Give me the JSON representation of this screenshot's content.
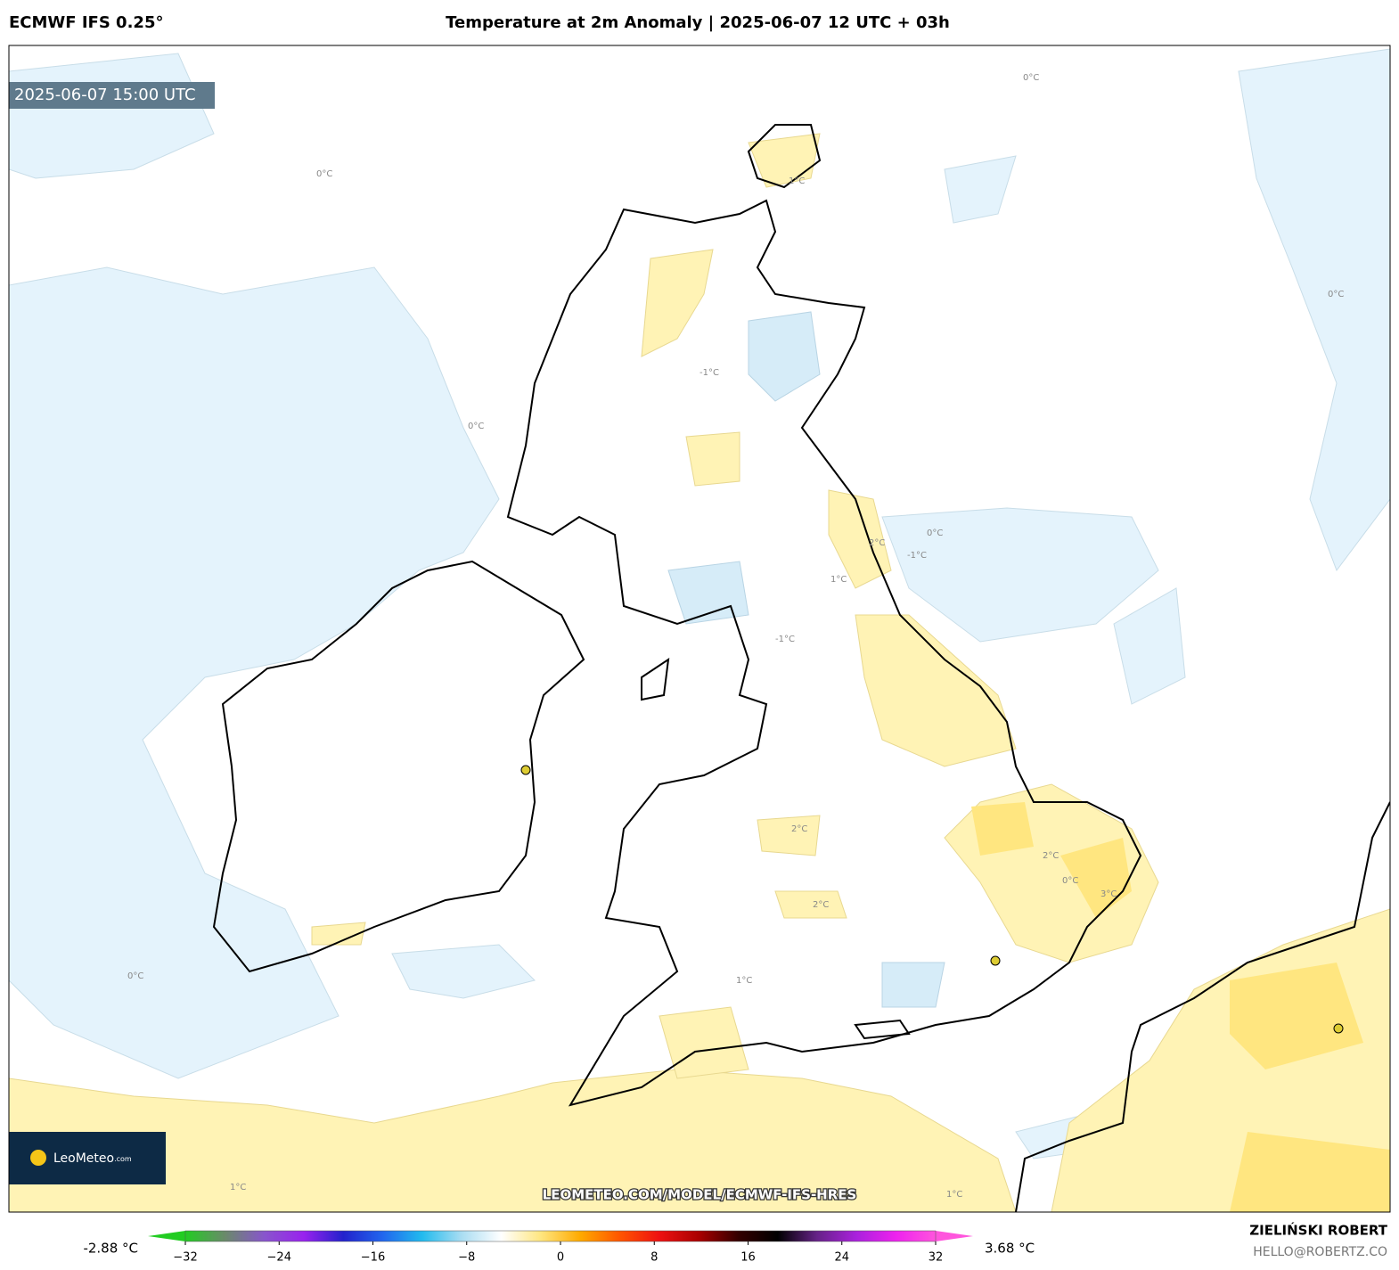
{
  "header": {
    "model": "ECMWF IFS 0.25°",
    "title": "Temperature at 2m Anomaly | 2025-06-07 12 UTC + 03h"
  },
  "map": {
    "valid_time": "2025-06-07 15:00 UTC",
    "logo": "LeoMeteo",
    "logo_suffix": ".com",
    "url": "LEOMETEO.COM/MODEL/ECMWF-IFS-HRES",
    "contour_labels": [
      "0°C",
      "0°C",
      "0°C",
      "0°C",
      "1°C",
      "-1°C",
      "0°C",
      "1°C",
      "2°C",
      "2°C",
      "2°C",
      "3°C",
      "-1°C",
      "1°C",
      "0°C",
      "1°C",
      "0°C",
      "2°C",
      "1°C",
      "-1°C"
    ]
  },
  "colorbar": {
    "min_label": "-2.88 °C",
    "max_label": "3.68 °C",
    "lim": [
      -32,
      32
    ],
    "ticks": [
      {
        "value": -32,
        "label": "−32"
      },
      {
        "value": -24,
        "label": "−24"
      },
      {
        "value": -16,
        "label": "−16"
      },
      {
        "value": -8,
        "label": "−8"
      },
      0,
      8,
      16,
      24,
      32
    ],
    "colors": [
      "#22cc22",
      "#6a8a6a",
      "#8855cc",
      "#9922ee",
      "#2222cc",
      "#2266ee",
      "#22bbee",
      "#aaddf2",
      "#ffffff",
      "#ffe680",
      "#ffaa00",
      "#ff5500",
      "#ee1111",
      "#aa0000",
      "#330000",
      "#000000",
      "#662288",
      "#aa22dd",
      "#ee22ee",
      "#ff55dd"
    ]
  },
  "credits": {
    "author": "ZIELIŃSKI ROBERT",
    "email": "HELLO@ROBERTZ.CO"
  }
}
